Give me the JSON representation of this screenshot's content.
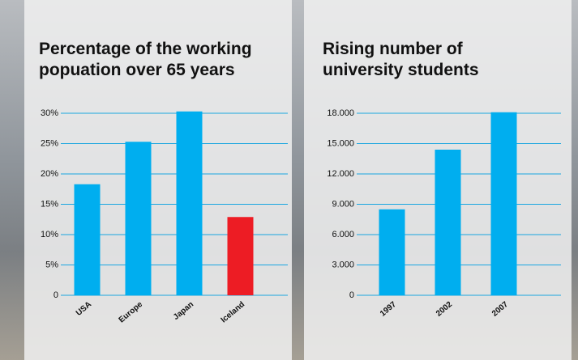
{
  "chart_data": [
    {
      "type": "bar",
      "title": "Percentage of the working popuation over 65 years",
      "categories": [
        "USA",
        "Europe",
        "Japan",
        "Iceland"
      ],
      "values": [
        18.3,
        25.3,
        30.3,
        12.9
      ],
      "colors": [
        "#00aeef",
        "#00aeef",
        "#00aeef",
        "#ed1c24"
      ],
      "ylim": [
        0,
        30
      ],
      "yticks": [
        0,
        {
          "value": 5,
          "label": "5%"
        },
        {
          "value": 10,
          "label": "10%"
        },
        {
          "value": 15,
          "label": "15%"
        },
        {
          "value": 20,
          "label": "20%"
        },
        {
          "value": 25,
          "label": "25%"
        },
        {
          "value": 30,
          "label": "30%"
        }
      ],
      "grid": true
    },
    {
      "type": "bar",
      "title": "Rising number of university students",
      "categories": [
        "1997",
        "2002",
        "2007"
      ],
      "values": [
        8500,
        14400,
        18100
      ],
      "colors": [
        "#00aeef",
        "#00aeef",
        "#00aeef"
      ],
      "ylim": [
        0,
        18000
      ],
      "yticks": [
        0,
        {
          "value": 3000,
          "label": "3.000"
        },
        {
          "value": 6000,
          "label": "6.000"
        },
        {
          "value": 9000,
          "label": "9.000"
        },
        {
          "value": 12000,
          "label": "12.000"
        },
        {
          "value": 15000,
          "label": "15.000"
        },
        {
          "value": 18000,
          "label": "18.000"
        }
      ],
      "grid": true
    }
  ]
}
